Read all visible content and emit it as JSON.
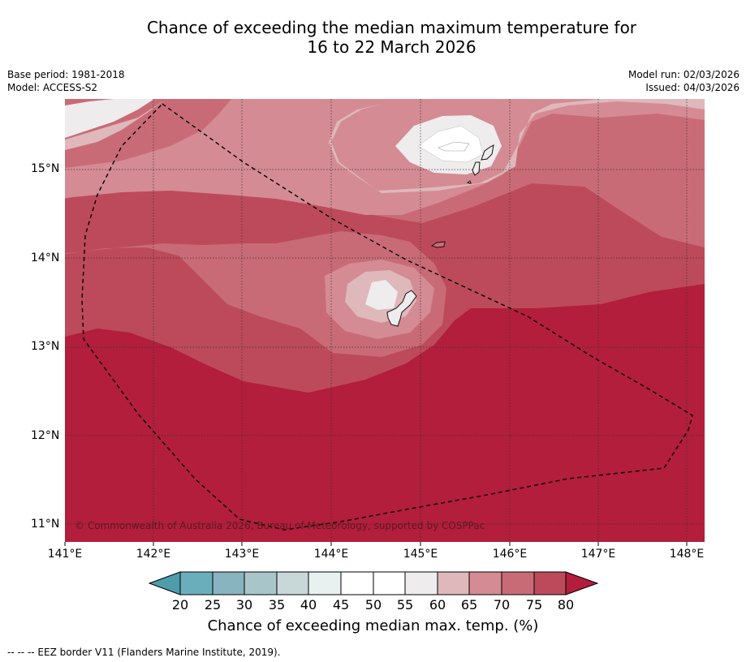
{
  "title": {
    "line1": "Chance of exceeding the median maximum temperature for",
    "line2": "16 to 22 March 2026"
  },
  "meta": {
    "base_period": "Base period: 1981-2018",
    "model": "Model: ACCESS-S2",
    "model_run": "Model run: 02/03/2026",
    "issued": "Issued: 04/03/2026"
  },
  "map": {
    "lat_labels": [
      "15°N",
      "14°N",
      "13°N",
      "12°N",
      "11°N"
    ],
    "lon_labels": [
      "141°E",
      "142°E",
      "143°E",
      "144°E",
      "145°E",
      "146°E",
      "147°E",
      "148°E"
    ],
    "copyright": "© Commonwealth of Australia 2026, Bureau of Meteorology, supported by COSPPac"
  },
  "colorbar": {
    "ticks": [
      "20",
      "25",
      "30",
      "35",
      "40",
      "45",
      "50",
      "55",
      "60",
      "65",
      "70",
      "75",
      "80"
    ],
    "colors": {
      "lt20": "#4e9cac",
      "b20_25": "#6aaebc",
      "b25_30": "#88b4c0",
      "b30_35": "#a8c6ca",
      "b35_40": "#c8d8d8",
      "b40_45": "#e8f0f0",
      "b45_50": "#ffffff",
      "b50_55": "#ffffff",
      "b55_60": "#eeeced",
      "b60_65": "#dfb8bc",
      "b65_70": "#d48b94",
      "b70_75": "#c96b77",
      "b75_80": "#bd4a5a",
      "gt80": "#b21e3b"
    },
    "title": "Chance of exceeding median max. temp. (%)"
  },
  "legend": {
    "text": "--  --  -- EEZ border V11 (Flanders Marine Institute, 2019)."
  }
}
